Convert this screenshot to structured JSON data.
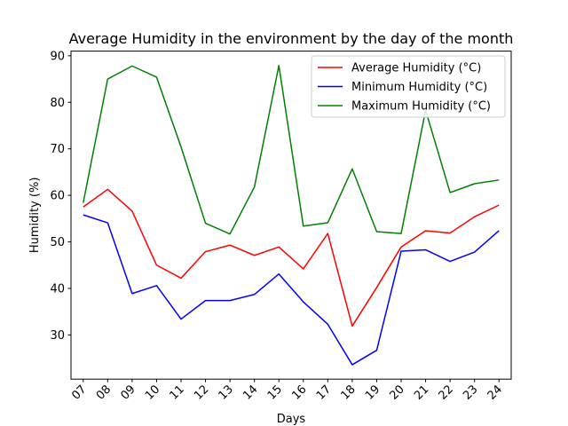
{
  "chart_data": {
    "type": "line",
    "title": "Average Humidity in the environment by the day of the month",
    "xlabel": "Days",
    "ylabel": "Humidity (%)",
    "categories": [
      "07",
      "08",
      "09",
      "10",
      "11",
      "12",
      "13",
      "14",
      "15",
      "16",
      "17",
      "18",
      "19",
      "20",
      "21",
      "22",
      "23",
      "24"
    ],
    "ylim": [
      20.5,
      91
    ],
    "yticks": [
      30,
      40,
      50,
      60,
      70,
      80,
      90
    ],
    "grid": false,
    "legend_position": "top-right",
    "series": [
      {
        "name": "Average Humidity (°C)",
        "color": "#ff0000",
        "values": [
          57.5,
          61.3,
          56.6,
          45.0,
          42.2,
          47.9,
          49.3,
          47.1,
          48.9,
          44.2,
          51.8,
          31.9,
          40.2,
          48.9,
          52.4,
          51.9,
          55.4,
          57.9
        ]
      },
      {
        "name": "Minimum Humidity (°C)",
        "color": "#0000ff",
        "values": [
          55.8,
          54.1,
          38.9,
          40.6,
          33.4,
          37.4,
          37.4,
          38.7,
          43.1,
          37.1,
          32.3,
          23.6,
          26.7,
          48.0,
          48.3,
          45.8,
          47.8,
          52.4
        ]
      },
      {
        "name": "Maximum Humidity (°C)",
        "color": "#008000",
        "values": [
          58.4,
          85.0,
          87.8,
          85.4,
          70.4,
          54.0,
          51.7,
          61.8,
          87.9,
          53.4,
          54.1,
          65.7,
          52.2,
          51.8,
          78.3,
          60.6,
          62.5,
          63.3
        ]
      }
    ]
  }
}
